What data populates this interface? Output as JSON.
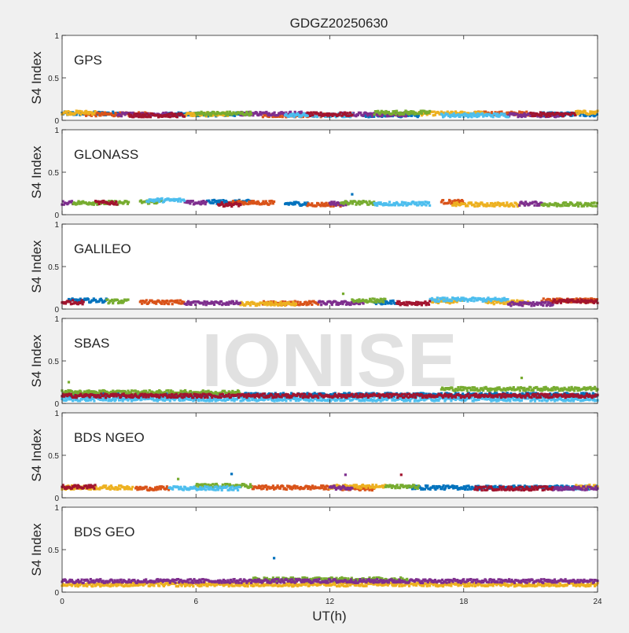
{
  "chart_data": {
    "type": "scatter",
    "title": "GDGZ20250630",
    "xlabel": "UT(h)",
    "xlim": [
      0,
      24
    ],
    "xticks": [
      0,
      6,
      12,
      18,
      24
    ],
    "ylabel": "S4 Index",
    "ylim": [
      0,
      1
    ],
    "yticks": [
      "0",
      "0.5",
      "1"
    ],
    "grid": false,
    "legend": "none",
    "watermark": "IONISE",
    "colors": [
      "#0072BD",
      "#D95319",
      "#EDB120",
      "#7E2F8E",
      "#77AC30",
      "#4DBEEE",
      "#A2142F"
    ],
    "panels": [
      {
        "name": "GPS",
        "label": "GPS",
        "series": [
          {
            "color": "#0072BD",
            "segments": [
              [
                0.0,
                2.5,
                0.08
              ],
              [
                4.5,
                8.0,
                0.07
              ],
              [
                13.5,
                16.0,
                0.06
              ],
              [
                21.5,
                24.0,
                0.07
              ]
            ]
          },
          {
            "color": "#D95319",
            "segments": [
              [
                1.0,
                4.0,
                0.07
              ],
              [
                9.0,
                12.0,
                0.06
              ],
              [
                18.5,
                21.0,
                0.08
              ]
            ]
          },
          {
            "color": "#EDB120",
            "segments": [
              [
                0.0,
                1.5,
                0.09
              ],
              [
                5.5,
                7.5,
                0.07
              ],
              [
                16.0,
                19.0,
                0.08
              ],
              [
                23.0,
                24.0,
                0.09
              ]
            ]
          },
          {
            "color": "#7E2F8E",
            "segments": [
              [
                2.5,
                5.0,
                0.07
              ],
              [
                8.0,
                11.0,
                0.08
              ],
              [
                12.5,
                15.5,
                0.07
              ],
              [
                20.0,
                22.5,
                0.06
              ]
            ]
          },
          {
            "color": "#77AC30",
            "segments": [
              [
                6.0,
                8.5,
                0.08
              ],
              [
                14.0,
                16.5,
                0.09
              ]
            ]
          },
          {
            "color": "#4DBEEE",
            "segments": [
              [
                10.0,
                13.0,
                0.06
              ],
              [
                17.0,
                20.0,
                0.06
              ]
            ]
          },
          {
            "color": "#A2142F",
            "segments": [
              [
                3.0,
                5.5,
                0.06
              ],
              [
                11.0,
                13.0,
                0.07
              ],
              [
                21.0,
                23.0,
                0.07
              ]
            ]
          }
        ],
        "outliers": []
      },
      {
        "name": "GLONASS",
        "label": "GLONASS",
        "series": [
          {
            "color": "#0072BD",
            "segments": [
              [
                6.5,
                8.5,
                0.15
              ],
              [
                10.0,
                11.0,
                0.13
              ]
            ]
          },
          {
            "color": "#D95319",
            "segments": [
              [
                7.5,
                9.5,
                0.14
              ],
              [
                11.0,
                12.5,
                0.12
              ],
              [
                17.0,
                18.0,
                0.15
              ]
            ]
          },
          {
            "color": "#EDB120",
            "segments": [
              [
                17.5,
                20.5,
                0.12
              ]
            ]
          },
          {
            "color": "#7E2F8E",
            "segments": [
              [
                0.0,
                0.5,
                0.14
              ],
              [
                5.5,
                6.5,
                0.14
              ],
              [
                12.0,
                12.8,
                0.13
              ],
              [
                20.5,
                21.5,
                0.13
              ]
            ]
          },
          {
            "color": "#77AC30",
            "segments": [
              [
                0.5,
                3.0,
                0.14
              ],
              [
                3.5,
                4.5,
                0.15
              ],
              [
                12.5,
                14.0,
                0.14
              ],
              [
                21.5,
                24.0,
                0.12
              ]
            ]
          },
          {
            "color": "#4DBEEE",
            "segments": [
              [
                3.8,
                5.5,
                0.17
              ],
              [
                14.0,
                16.5,
                0.13
              ]
            ]
          },
          {
            "color": "#A2142F",
            "segments": [
              [
                1.5,
                2.5,
                0.14
              ],
              [
                7.0,
                8.0,
                0.12
              ]
            ]
          }
        ],
        "outliers": [
          {
            "x": 13.0,
            "y": 0.24,
            "color": "#0072BD"
          }
        ]
      },
      {
        "name": "GALILEO",
        "label": "GALILEO",
        "series": [
          {
            "color": "#0072BD",
            "segments": [
              [
                0.3,
                2.0,
                0.1
              ],
              [
                14.0,
                15.0,
                0.08
              ]
            ]
          },
          {
            "color": "#D95319",
            "segments": [
              [
                3.5,
                5.5,
                0.08
              ],
              [
                9.0,
                11.5,
                0.07
              ],
              [
                21.5,
                24.0,
                0.1
              ]
            ]
          },
          {
            "color": "#EDB120",
            "segments": [
              [
                8.0,
                10.5,
                0.06
              ],
              [
                16.5,
                18.0,
                0.09
              ],
              [
                19.0,
                21.0,
                0.08
              ]
            ]
          },
          {
            "color": "#7E2F8E",
            "segments": [
              [
                5.5,
                8.0,
                0.07
              ],
              [
                11.5,
                13.5,
                0.07
              ],
              [
                20.0,
                22.0,
                0.06
              ]
            ]
          },
          {
            "color": "#77AC30",
            "segments": [
              [
                13.0,
                14.5,
                0.1
              ],
              [
                2.0,
                3.0,
                0.09
              ]
            ]
          },
          {
            "color": "#4DBEEE",
            "segments": [
              [
                16.5,
                20.0,
                0.11
              ]
            ]
          },
          {
            "color": "#A2142F",
            "segments": [
              [
                0.0,
                1.0,
                0.08
              ],
              [
                15.0,
                16.5,
                0.07
              ],
              [
                22.0,
                24.0,
                0.09
              ]
            ]
          }
        ],
        "outliers": [
          {
            "x": 12.6,
            "y": 0.18,
            "color": "#77AC30"
          }
        ]
      },
      {
        "name": "SBAS",
        "label": "SBAS",
        "series": [
          {
            "color": "#0072BD",
            "segments": [
              [
                0.0,
                24.0,
                0.1
              ]
            ]
          },
          {
            "color": "#4DBEEE",
            "segments": [
              [
                0.0,
                24.0,
                0.05
              ]
            ]
          },
          {
            "color": "#77AC30",
            "segments": [
              [
                0.0,
                8.0,
                0.13
              ],
              [
                17.0,
                24.0,
                0.17
              ]
            ]
          },
          {
            "color": "#A2142F",
            "segments": [
              [
                0.0,
                24.0,
                0.09
              ]
            ]
          }
        ],
        "outliers": [
          {
            "x": 0.3,
            "y": 0.25,
            "color": "#77AC30"
          },
          {
            "x": 20.6,
            "y": 0.3,
            "color": "#77AC30"
          }
        ]
      },
      {
        "name": "BDS NGEO",
        "label": "BDS NGEO",
        "series": [
          {
            "color": "#0072BD",
            "segments": [
              [
                15.5,
                24.0,
                0.12
              ]
            ]
          },
          {
            "color": "#D95319",
            "segments": [
              [
                3.3,
                4.8,
                0.11
              ],
              [
                8.5,
                12.0,
                0.12
              ],
              [
                12.5,
                14.0,
                0.11
              ]
            ]
          },
          {
            "color": "#EDB120",
            "segments": [
              [
                0.0,
                3.2,
                0.12
              ],
              [
                12.0,
                14.5,
                0.13
              ],
              [
                23.0,
                24.0,
                0.13
              ]
            ]
          },
          {
            "color": "#7E2F8E",
            "segments": [
              [
                12.0,
                13.0,
                0.12
              ],
              [
                22.0,
                24.0,
                0.11
              ]
            ]
          },
          {
            "color": "#77AC30",
            "segments": [
              [
                6.0,
                8.5,
                0.14
              ],
              [
                14.5,
                16.0,
                0.13
              ]
            ]
          },
          {
            "color": "#4DBEEE",
            "segments": [
              [
                4.8,
                8.0,
                0.11
              ]
            ]
          },
          {
            "color": "#A2142F",
            "segments": [
              [
                0.0,
                1.5,
                0.13
              ],
              [
                18.5,
                22.0,
                0.11
              ]
            ]
          }
        ],
        "outliers": [
          {
            "x": 5.2,
            "y": 0.22,
            "color": "#77AC30"
          },
          {
            "x": 7.6,
            "y": 0.28,
            "color": "#0072BD"
          },
          {
            "x": 12.7,
            "y": 0.27,
            "color": "#7E2F8E"
          },
          {
            "x": 15.2,
            "y": 0.27,
            "color": "#A2142F"
          }
        ]
      },
      {
        "name": "BDS GEO",
        "label": "BDS GEO",
        "series": [
          {
            "color": "#EDB120",
            "segments": [
              [
                0.0,
                24.0,
                0.09
              ]
            ]
          },
          {
            "color": "#77AC30",
            "segments": [
              [
                8.5,
                15.5,
                0.15
              ]
            ]
          },
          {
            "color": "#7E2F8E",
            "segments": [
              [
                0.0,
                24.0,
                0.13
              ]
            ]
          }
        ],
        "outliers": [
          {
            "x": 9.5,
            "y": 0.4,
            "color": "#0072BD"
          }
        ]
      }
    ]
  }
}
